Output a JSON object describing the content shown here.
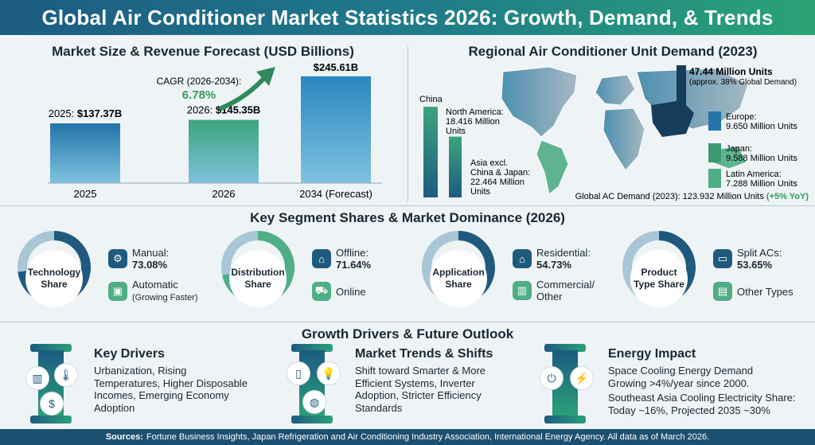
{
  "title": "Global Air Conditioner Market Statistics 2026: Growth, Demand, & Trends",
  "market": {
    "title": "Market Size & Revenue Forecast (USD Billions)",
    "cagr_label": "CAGR (2026-2034):",
    "cagr_value": "6.78%"
  },
  "regional": {
    "title": "Regional Air Conditioner Unit Demand (2023)",
    "china_label": "China",
    "china_value": "47.44 Million Units",
    "china_note": "(approx. 38% Global Demand)",
    "north_america": [
      "North America:",
      "18.416 Million",
      "Units"
    ],
    "asia": [
      "Asia excl.",
      "China & Japan:",
      "22.464 Million",
      "Units"
    ],
    "europe": [
      "Europe:",
      "9.650 Million Units"
    ],
    "japan": [
      "Japan:",
      "9.588 Million Units"
    ],
    "latin_america": [
      "Latin America:",
      "7.288 Million Units"
    ],
    "global_note": "Global AC Demand (2023): 123.932 Million Units",
    "global_change": "(+5% YoY)"
  },
  "chart_data": [
    {
      "type": "bar",
      "title": "Market Size & Revenue Forecast (USD Billions)",
      "categories": [
        "2025",
        "2026",
        "2034 (Forecast)"
      ],
      "values": [
        137.37,
        145.35,
        245.61
      ],
      "labels": [
        "2025: $137.37B",
        "2026: $145.35B",
        "2034 (Forecast): $245.61B"
      ],
      "colors": [
        "#2474a8",
        "#3ca47b",
        "#2a86c0"
      ]
    },
    {
      "type": "bar",
      "title": "Regional Air Conditioner Unit Demand (2023)",
      "categories": [
        "China",
        "North America",
        "Asia excl. China & Japan",
        "Europe",
        "Japan",
        "Latin America"
      ],
      "values": [
        47.44,
        18.416,
        22.464,
        9.65,
        9.588,
        7.288
      ],
      "unit": "Million Units"
    },
    {
      "type": "pie",
      "title": "Technology Share",
      "slices": [
        {
          "name": "Manual",
          "value": 73.08
        },
        {
          "name": "Automatic",
          "value": 26.92
        }
      ]
    },
    {
      "type": "pie",
      "title": "Distribution Share",
      "slices": [
        {
          "name": "Offline",
          "value": 71.64
        },
        {
          "name": "Online",
          "value": 28.36
        }
      ]
    },
    {
      "type": "pie",
      "title": "Application Share",
      "slices": [
        {
          "name": "Residential",
          "value": 54.73
        },
        {
          "name": "Commercial/Other",
          "value": 45.27
        }
      ]
    },
    {
      "type": "pie",
      "title": "Product Type Share",
      "slices": [
        {
          "name": "Split ACs",
          "value": 53.65
        },
        {
          "name": "Other Types",
          "value": 46.35
        }
      ]
    }
  ],
  "segments": {
    "title": "Key Segment Shares & Market Dominance (2026)",
    "technology": {
      "center": [
        "Technology",
        "Share"
      ],
      "primary": "Manual:",
      "primary_value": "73.08%",
      "secondary": "Automatic",
      "secondary_note": "(Growing Faster)"
    },
    "distribution": {
      "center": [
        "Distribution",
        "Share"
      ],
      "primary": "Offline:",
      "primary_value": "71.64%",
      "secondary": "Online"
    },
    "application": {
      "center": [
        "Application",
        "Share"
      ],
      "primary": "Residential:",
      "primary_value": "54.73%",
      "secondary": [
        "Commercial/",
        "Other"
      ]
    },
    "product": {
      "center": [
        "Product",
        "Type Share"
      ],
      "primary": "Split ACs:",
      "primary_value": "53.65%",
      "secondary": "Other Types"
    },
    "colors": {
      "dark": "#1f5a7e",
      "green": "#4fae86",
      "light": "#a8c6d6"
    }
  },
  "drivers": {
    "title": "Growth Drivers & Future Outlook",
    "key": {
      "title": "Key Drivers",
      "lines": [
        "Urbanization, Rising",
        "Temperatures, Higher Disposable",
        "Incomes, Emerging Economy",
        "Adoption"
      ]
    },
    "trends": {
      "title": "Market Trends & Shifts",
      "lines": [
        "Shift toward Smarter & More",
        "Efficient Systems, Inverter",
        "Adoption, Stricter Efficiency",
        "Standards"
      ]
    },
    "energy": {
      "title": "Energy Impact",
      "lines": [
        "Space Cooling Energy Demand",
        "Growing >4%/year since 2000.",
        "Southeast Asia Cooling Electricity Share:",
        "Today ~16%, Projected 2035 ~30%"
      ]
    }
  },
  "footer": {
    "label": "Sources:",
    "text": "Fortune Business Insights, Japan Refrigeration and Air Conditioning Industry Association, International Energy Agency. All data as of March 2026."
  }
}
